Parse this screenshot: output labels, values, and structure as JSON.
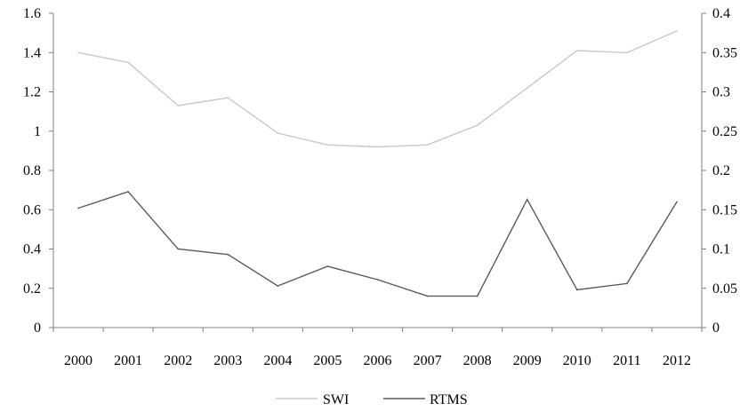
{
  "chart_data": {
    "type": "line",
    "x": [
      "2000",
      "2001",
      "2002",
      "2003",
      "2004",
      "2005",
      "2006",
      "2007",
      "2008",
      "2009",
      "2010",
      "2011",
      "2012"
    ],
    "y_left_ticks": [
      "0",
      "0.2",
      "0.4",
      "0.6",
      "0.8",
      "1",
      "1.2",
      "1.4",
      "1.6"
    ],
    "y_right_ticks": [
      "0",
      "0.05",
      "0.1",
      "0.15",
      "0.2",
      "0.25",
      "0.3",
      "0.35",
      "0.4"
    ],
    "ylim_left": [
      0,
      1.6
    ],
    "ylim_right": [
      0,
      0.4
    ],
    "grid": false,
    "legend_position": "bottom-center",
    "series": [
      {
        "name": "SWI",
        "axis": "left",
        "color": "#c8c8c8",
        "values": [
          1.4,
          1.35,
          1.13,
          1.17,
          0.99,
          0.93,
          0.92,
          0.93,
          1.03,
          1.22,
          1.41,
          1.4,
          1.51
        ]
      },
      {
        "name": "RTMS",
        "axis": "right",
        "color": "#5a5a5a",
        "values": [
          0.152,
          0.173,
          0.1,
          0.093,
          0.053,
          0.078,
          0.061,
          0.04,
          0.04,
          0.163,
          0.048,
          0.056,
          0.16
        ]
      }
    ]
  }
}
